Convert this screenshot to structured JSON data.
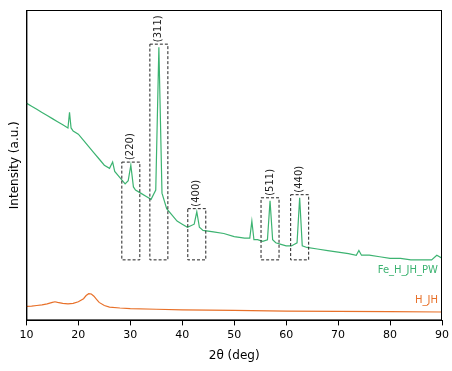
{
  "chart_data": {
    "type": "line",
    "x_label": "2θ (deg)",
    "y_label": "Intensity (a.u.)",
    "xlim": [
      10,
      90
    ],
    "xticks": [
      10,
      20,
      30,
      40,
      50,
      60,
      70,
      80,
      90
    ],
    "ylim": [
      0,
      100
    ],
    "tick_labels": "x",
    "grid": false,
    "series": [
      {
        "name": "Fe_H_JH_PW",
        "color": "#3cb371",
        "x": [
          10,
          11,
          12,
          13,
          14,
          15,
          16,
          17,
          18,
          18.3,
          18.6,
          19,
          20,
          21,
          22,
          23,
          24,
          25,
          26,
          26.6,
          27,
          28,
          29,
          29.6,
          30.1,
          30.6,
          31,
          32,
          33,
          34,
          34.9,
          35.5,
          36.1,
          37,
          38,
          39,
          40,
          41,
          42.3,
          42.8,
          43.3,
          44,
          46,
          48,
          50,
          52,
          53,
          53.4,
          53.8,
          54.5,
          55.5,
          56.4,
          56.9,
          57.4,
          58,
          59,
          60,
          61,
          62.1,
          62.6,
          63.1,
          64,
          66,
          68,
          70,
          72,
          73.5,
          74,
          74.5,
          76,
          78,
          80,
          82,
          84,
          86,
          88,
          89,
          90
        ],
        "values": [
          70,
          69,
          68,
          67,
          66,
          65,
          64,
          63,
          62,
          67,
          62,
          61,
          60,
          58,
          56,
          54,
          52,
          50,
          49,
          51,
          48,
          46,
          44,
          45,
          50,
          43,
          42,
          41,
          40,
          39,
          42,
          88,
          41,
          36,
          34,
          32,
          31,
          30,
          31,
          35,
          30,
          29,
          28.5,
          28,
          27,
          26.5,
          26.5,
          32,
          26,
          26,
          25.5,
          26,
          38.5,
          26,
          25,
          24.5,
          24,
          24,
          25,
          39.5,
          24,
          23.5,
          23,
          22.5,
          22,
          21.5,
          21,
          22.5,
          21,
          21,
          20.5,
          20,
          20,
          19.5,
          19.5,
          19.5,
          21,
          20
        ]
      },
      {
        "name": "H_JH",
        "color": "#e8712a",
        "x": [
          10,
          11,
          12,
          13,
          14,
          15,
          15.5,
          16,
          17,
          18,
          19,
          20,
          21,
          21.5,
          22,
          22.5,
          23,
          23.5,
          24,
          25,
          26,
          28,
          30,
          35,
          40,
          50,
          60,
          70,
          80,
          90
        ],
        "values": [
          4.5,
          4.6,
          4.8,
          5,
          5.3,
          5.8,
          6,
          5.8,
          5.5,
          5.3,
          5.5,
          6,
          7,
          8,
          8.6,
          8.5,
          7.8,
          6.8,
          5.8,
          4.8,
          4.3,
          4,
          3.8,
          3.6,
          3.4,
          3.2,
          3,
          2.9,
          2.8,
          2.7
        ]
      }
    ],
    "annotations": [
      {
        "text": "(220)",
        "x": 30.1,
        "y": 51
      },
      {
        "text": "(311)",
        "x": 35.5,
        "y": 89
      },
      {
        "text": "(400)",
        "x": 42.8,
        "y": 36
      },
      {
        "text": "(511)",
        "x": 56.9,
        "y": 39.5
      },
      {
        "text": "(440)",
        "x": 62.6,
        "y": 40.5
      }
    ]
  }
}
